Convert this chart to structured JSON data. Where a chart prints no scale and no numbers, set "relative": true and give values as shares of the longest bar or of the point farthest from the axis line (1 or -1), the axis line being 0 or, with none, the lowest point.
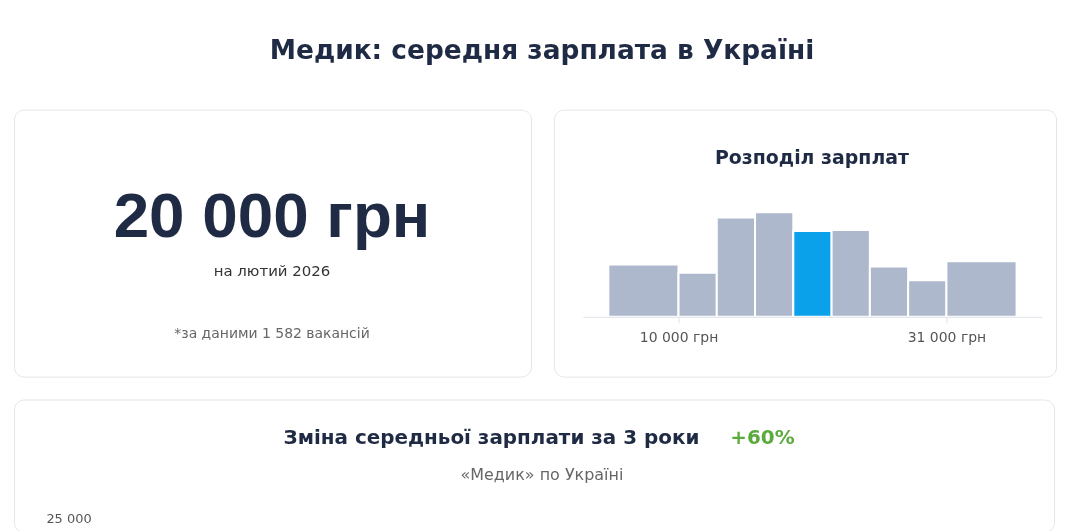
{
  "chart_data": [
    {
      "type": "other",
      "title": "Медик: середня зарплата в Україні"
    },
    {
      "type": "other",
      "annotations": [
        "20 000 грн",
        "на лютий 2026",
        "*за даними 1 582 вакансій"
      ]
    },
    {
      "type": "bar",
      "title": "Розподіл зарплат",
      "relative": true,
      "x": [
        7250,
        11500,
        14500,
        17500,
        20500,
        23500,
        26500,
        29500,
        33750
      ],
      "values": [
        0.5,
        0.42,
        0.95,
        1,
        0.82,
        0.83,
        0.48,
        0.35,
        0.53
      ],
      "colors": [
        "#aeb8cc",
        "#aeb8cc",
        "#aeb8cc",
        "#aeb8cc",
        "#0aa0ea",
        "#aeb8cc",
        "#aeb8cc",
        "#aeb8cc",
        "#aeb8cc"
      ],
      "xlim": [
        2500,
        38500
      ],
      "xticks": [
        {
          "value": 10000,
          "label": "10 000 грн"
        },
        {
          "value": 31000,
          "label": "31 000 грн"
        }
      ]
    },
    {
      "type": "other",
      "title": "Зміна середньої зарплати за 3 роки",
      "subtitle": "«Медик» по Україні",
      "annotations": [
        "+60%",
        "25 000"
      ]
    }
  ]
}
